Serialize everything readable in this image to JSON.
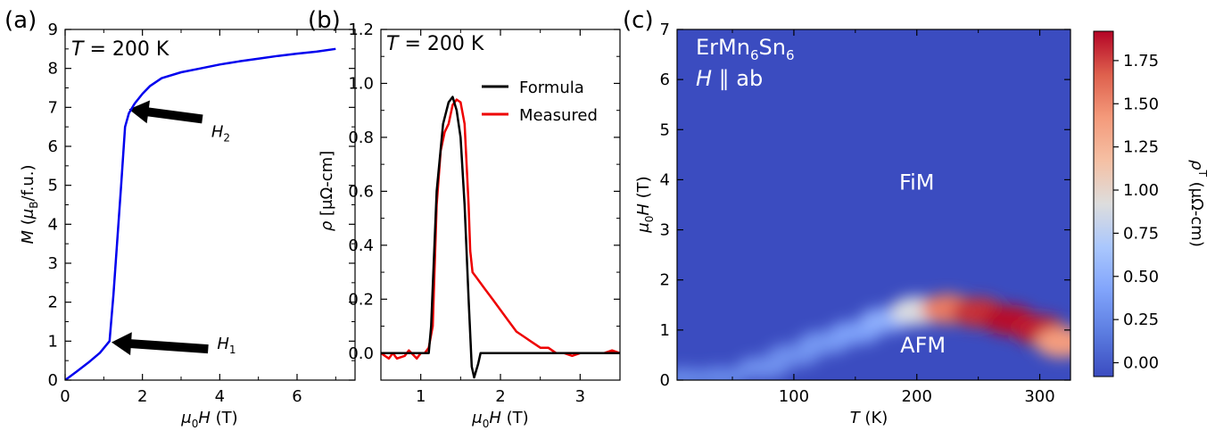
{
  "chart_data": [
    {
      "panel": "(a)",
      "type": "line",
      "annotation": "T = 200 K",
      "annotation_parts": [
        "T",
        " = 200 K"
      ],
      "xlabel_parts": [
        "μ",
        "0",
        "H",
        " (T)"
      ],
      "ylabel_parts": [
        "M",
        " (",
        "μ",
        "B",
        "/f.u.)"
      ],
      "xlim": [
        0,
        7.5
      ],
      "ylim": [
        0,
        9
      ],
      "xticks": [
        0,
        2,
        4,
        6
      ],
      "yticks": [
        0,
        1,
        2,
        3,
        4,
        5,
        6,
        7,
        8,
        9
      ],
      "series": [
        {
          "color": "#0000ee",
          "x": [
            0,
            0.3,
            0.6,
            0.9,
            1.15,
            1.25,
            1.35,
            1.45,
            1.55,
            1.65,
            1.8,
            2.0,
            2.2,
            2.5,
            3.0,
            3.5,
            4.0,
            4.5,
            5.0,
            5.5,
            6.0,
            6.5,
            7.0
          ],
          "y": [
            0,
            0.22,
            0.45,
            0.7,
            1.0,
            2.2,
            3.6,
            5.0,
            6.5,
            6.85,
            7.1,
            7.35,
            7.55,
            7.75,
            7.9,
            8.0,
            8.1,
            8.18,
            8.25,
            8.32,
            8.38,
            8.43,
            8.5
          ]
        }
      ],
      "arrows": [
        {
          "label": "H",
          "sub": "2",
          "from": [
            3.55,
            6.7
          ],
          "to": [
            1.65,
            6.95
          ]
        },
        {
          "label": "H",
          "sub": "1",
          "from": [
            3.7,
            0.8
          ],
          "to": [
            1.2,
            0.97
          ]
        }
      ]
    },
    {
      "panel": "(b)",
      "type": "line",
      "annotation": "T = 200 K",
      "annotation_parts": [
        "T",
        " = 200 K"
      ],
      "xlabel_parts": [
        "μ",
        "0",
        "H",
        " (T)"
      ],
      "ylabel": "ρ [μΩ-cm]",
      "ylabel_parts": [
        "ρ",
        " [μΩ-cm]"
      ],
      "xlim": [
        0.5,
        3.5
      ],
      "ylim": [
        -0.1,
        1.2
      ],
      "xticks": [
        1,
        2,
        3
      ],
      "yticks": [
        0.0,
        0.2,
        0.4,
        0.6,
        0.8,
        1.0,
        1.2
      ],
      "legend_position": "top-right",
      "series": [
        {
          "name": "Formula",
          "color": "#000000",
          "x": [
            0.5,
            1.1,
            1.13,
            1.2,
            1.28,
            1.35,
            1.4,
            1.45,
            1.5,
            1.55,
            1.6,
            1.64,
            1.67,
            1.72,
            1.75,
            1.8,
            2.0,
            2.5,
            3.0,
            3.5
          ],
          "y": [
            0,
            0,
            0.1,
            0.6,
            0.85,
            0.93,
            0.95,
            0.9,
            0.8,
            0.55,
            0.2,
            -0.05,
            -0.09,
            -0.04,
            0.0,
            0.0,
            0.0,
            0.0,
            0.0,
            0.0
          ]
        },
        {
          "name": "Measured",
          "color": "#ee0000",
          "x": [
            0.5,
            0.6,
            0.65,
            0.7,
            0.8,
            0.85,
            0.95,
            1.0,
            1.05,
            1.1,
            1.15,
            1.2,
            1.25,
            1.3,
            1.35,
            1.4,
            1.45,
            1.5,
            1.55,
            1.6,
            1.62,
            1.65,
            1.7,
            1.8,
            1.9,
            2.0,
            2.1,
            2.2,
            2.3,
            2.4,
            2.5,
            2.6,
            2.7,
            2.8,
            2.9,
            3.0,
            3.1,
            3.2,
            3.3,
            3.4,
            3.5
          ],
          "y": [
            0.0,
            -0.02,
            0.0,
            -0.02,
            -0.01,
            0.01,
            -0.02,
            0.0,
            0.0,
            0.02,
            0.1,
            0.55,
            0.75,
            0.82,
            0.85,
            0.92,
            0.94,
            0.93,
            0.85,
            0.55,
            0.38,
            0.3,
            0.28,
            0.24,
            0.2,
            0.16,
            0.12,
            0.08,
            0.06,
            0.04,
            0.02,
            0.02,
            0.0,
            0.0,
            -0.01,
            0.0,
            0.0,
            0.0,
            0.0,
            0.01,
            0.0
          ]
        }
      ]
    },
    {
      "panel": "(c)",
      "type": "heatmap",
      "title_lines": [
        "ErMn6Sn6",
        "H ∥ ab"
      ],
      "title_parts": {
        "line1": [
          "ErMn",
          "6",
          "Sn",
          "6"
        ],
        "line2": [
          "H",
          " ∥  ab"
        ]
      },
      "xlabel_parts": [
        "T",
        " (K)"
      ],
      "ylabel_parts": [
        "μ",
        "0",
        "H",
        " (T)"
      ],
      "xlim": [
        5,
        325
      ],
      "ylim": [
        0,
        7
      ],
      "xticks": [
        100,
        200,
        300
      ],
      "yticks": [
        0,
        1,
        2,
        3,
        4,
        5,
        6,
        7
      ],
      "region_labels": [
        {
          "text": "FiM",
          "T": 200,
          "H": 3.8
        },
        {
          "text": "AFM",
          "T": 205,
          "H": 0.55
        }
      ],
      "ridge": [
        {
          "T": 10,
          "H": 0.03,
          "v": 0.25
        },
        {
          "T": 40,
          "H": 0.05,
          "v": 0.25
        },
        {
          "T": 75,
          "H": 0.25,
          "v": 0.3
        },
        {
          "T": 100,
          "H": 0.5,
          "v": 0.3
        },
        {
          "T": 125,
          "H": 0.75,
          "v": 0.35
        },
        {
          "T": 150,
          "H": 0.95,
          "v": 0.4
        },
        {
          "T": 175,
          "H": 1.2,
          "v": 0.5
        },
        {
          "T": 200,
          "H": 1.38,
          "v": 0.9
        },
        {
          "T": 225,
          "H": 1.42,
          "v": 1.55
        },
        {
          "T": 250,
          "H": 1.35,
          "v": 1.8
        },
        {
          "T": 275,
          "H": 1.2,
          "v": 1.9
        },
        {
          "T": 300,
          "H": 1.0,
          "v": 1.85
        },
        {
          "T": 318,
          "H": 0.75,
          "v": 1.4
        }
      ],
      "colorbar": {
        "label": "ρT (μΩ-cm)",
        "label_parts": [
          "ρ",
          "T",
          " (μΩ-cm)"
        ],
        "range": [
          -0.08,
          1.92
        ],
        "ticks": [
          0.0,
          0.25,
          0.5,
          0.75,
          1.0,
          1.25,
          1.5,
          1.75
        ],
        "tick_labels": [
          "0.00",
          "0.25",
          "0.50",
          "0.75",
          "1.00",
          "1.25",
          "1.50",
          "1.75"
        ],
        "colormap": "coolwarm"
      }
    }
  ],
  "colors": {
    "background": "#ffffff",
    "heatmap_base": "#3b4cc0"
  }
}
